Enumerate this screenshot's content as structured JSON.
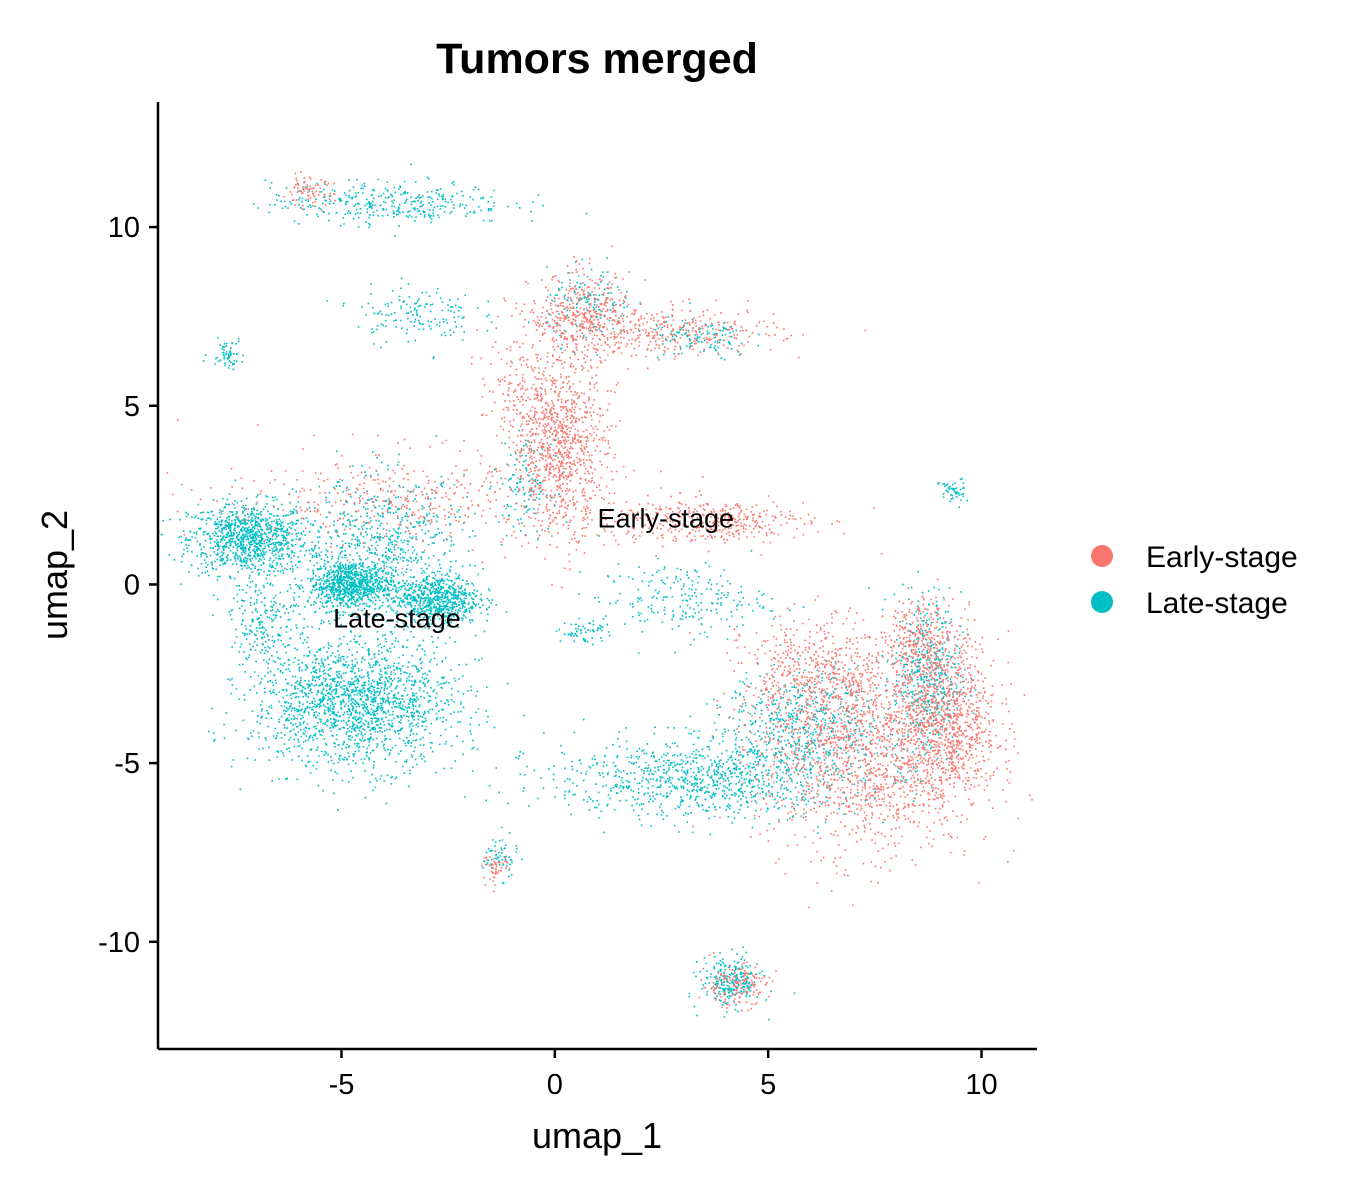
{
  "chart_data": {
    "type": "scatter",
    "title": "Tumors merged",
    "xlabel": "umap_1",
    "ylabel": "umap_2",
    "xlim": [
      -9.3,
      11.3
    ],
    "ylim": [
      -13.0,
      13.5
    ],
    "x_ticks": [
      -5,
      0,
      5,
      10
    ],
    "y_ticks": [
      -10,
      -5,
      0,
      5,
      10
    ],
    "x_tick_labels": [
      "-5",
      "0",
      "5",
      "10"
    ],
    "y_tick_labels": [
      "-10",
      "-5",
      "0",
      "5",
      "10"
    ],
    "grid": false,
    "legend_position": "right",
    "legend": [
      {
        "label": "Early-stage",
        "color": "#F8766D"
      },
      {
        "label": "Late-stage",
        "color": "#00BFC4"
      }
    ],
    "annotations": [
      {
        "text": "Early-stage",
        "x": 2.6,
        "y": 1.6
      },
      {
        "text": "Late-stage",
        "x": -3.7,
        "y": -1.2
      }
    ],
    "series": [
      {
        "name": "Early-stage",
        "color": "#F8766D",
        "clusters": [
          {
            "cx": 0.1,
            "cy": 4.0,
            "sx": 0.55,
            "sy": 1.2,
            "n": 900
          },
          {
            "cx": 0.6,
            "cy": 7.5,
            "sx": 0.6,
            "sy": 0.6,
            "n": 400
          },
          {
            "cx": 2.6,
            "cy": 7.1,
            "sx": 1.3,
            "sy": 0.35,
            "n": 350
          },
          {
            "cx": 3.5,
            "cy": 1.8,
            "sx": 1.2,
            "sy": 0.3,
            "n": 380
          },
          {
            "cx": -3.2,
            "cy": 2.4,
            "sx": 2.4,
            "sy": 0.7,
            "n": 450
          },
          {
            "cx": -1.0,
            "cy": 5.3,
            "sx": 0.4,
            "sy": 0.8,
            "n": 120
          },
          {
            "cx": 7.2,
            "cy": -4.5,
            "sx": 1.2,
            "sy": 1.5,
            "n": 1500
          },
          {
            "cx": 9.2,
            "cy": -3.8,
            "sx": 0.6,
            "sy": 1.2,
            "n": 900
          },
          {
            "cx": 6.0,
            "cy": -2.5,
            "sx": 0.8,
            "sy": 0.8,
            "n": 400
          },
          {
            "cx": 8.6,
            "cy": -1.5,
            "sx": 0.4,
            "sy": 0.6,
            "n": 250
          },
          {
            "cx": 4.2,
            "cy": -11.2,
            "sx": 0.4,
            "sy": 0.3,
            "n": 150
          },
          {
            "cx": -5.8,
            "cy": 11.0,
            "sx": 0.3,
            "sy": 0.2,
            "n": 80
          },
          {
            "cx": -1.4,
            "cy": -7.9,
            "sx": 0.15,
            "sy": 0.2,
            "n": 50
          }
        ]
      },
      {
        "name": "Late-stage",
        "color": "#00BFC4",
        "clusters": [
          {
            "cx": -7.2,
            "cy": 1.3,
            "sx": 0.7,
            "sy": 0.5,
            "n": 1000
          },
          {
            "cx": -4.8,
            "cy": 0.0,
            "sx": 0.5,
            "sy": 0.35,
            "n": 900
          },
          {
            "cx": -2.8,
            "cy": -0.4,
            "sx": 0.5,
            "sy": 0.35,
            "n": 700
          },
          {
            "cx": -4.7,
            "cy": -3.3,
            "sx": 1.2,
            "sy": 0.9,
            "n": 1800
          },
          {
            "cx": -4.0,
            "cy": 1.2,
            "sx": 1.0,
            "sy": 0.9,
            "n": 600
          },
          {
            "cx": -6.8,
            "cy": -1.0,
            "sx": 0.4,
            "sy": 0.6,
            "n": 200
          },
          {
            "cx": 3.5,
            "cy": -5.4,
            "sx": 1.8,
            "sy": 0.55,
            "n": 1000
          },
          {
            "cx": 5.8,
            "cy": -3.8,
            "sx": 0.9,
            "sy": 0.7,
            "n": 500
          },
          {
            "cx": 8.7,
            "cy": -2.6,
            "sx": 0.4,
            "sy": 1.2,
            "n": 500
          },
          {
            "cx": 3.0,
            "cy": -0.4,
            "sx": 1.0,
            "sy": 0.5,
            "n": 220
          },
          {
            "cx": -3.9,
            "cy": 10.7,
            "sx": 1.4,
            "sy": 0.3,
            "n": 350
          },
          {
            "cx": -3.3,
            "cy": 7.6,
            "sx": 0.7,
            "sy": 0.4,
            "n": 150
          },
          {
            "cx": 0.8,
            "cy": 7.8,
            "sx": 0.5,
            "sy": 0.5,
            "n": 150
          },
          {
            "cx": 3.4,
            "cy": 6.9,
            "sx": 0.6,
            "sy": 0.3,
            "n": 120
          },
          {
            "cx": -7.7,
            "cy": 6.5,
            "sx": 0.2,
            "sy": 0.2,
            "n": 60
          },
          {
            "cx": -0.7,
            "cy": 2.8,
            "sx": 0.3,
            "sy": 0.6,
            "n": 120
          },
          {
            "cx": 4.1,
            "cy": -11.1,
            "sx": 0.35,
            "sy": 0.35,
            "n": 250
          },
          {
            "cx": -1.3,
            "cy": -7.6,
            "sx": 0.2,
            "sy": 0.3,
            "n": 60
          },
          {
            "cx": 9.3,
            "cy": 2.6,
            "sx": 0.15,
            "sy": 0.2,
            "n": 50
          },
          {
            "cx": 0.7,
            "cy": -1.3,
            "sx": 0.3,
            "sy": 0.15,
            "n": 60
          }
        ]
      }
    ]
  }
}
